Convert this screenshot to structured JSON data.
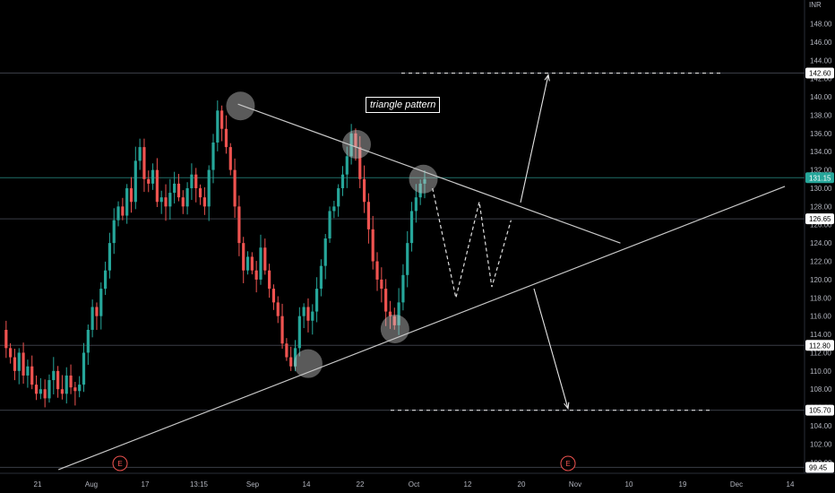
{
  "chart_data": {
    "type": "candlestick",
    "currency": "INR",
    "y_range": [
      98.8,
      150.6
    ],
    "y_ticks": [
      "100.00",
      "102.00",
      "104.00",
      "106.00",
      "108.00",
      "110.00",
      "112.00",
      "114.00",
      "116.00",
      "118.00",
      "120.00",
      "122.00",
      "124.00",
      "126.00",
      "128.00",
      "130.00",
      "132.00",
      "134.00",
      "136.00",
      "138.00",
      "140.00",
      "142.00",
      "144.00",
      "146.00",
      "148.00"
    ],
    "x_ticks": [
      "21",
      "Aug",
      "17",
      "13:15",
      "Sep",
      "14",
      "22",
      "Oct",
      "12",
      "20",
      "Nov",
      "10",
      "19",
      "Dec",
      "14"
    ],
    "price_tags": [
      {
        "label": "142.60",
        "value": 142.6,
        "color": "#ffffff",
        "text_color": "#000000"
      },
      {
        "label": "131.15",
        "value": 131.15,
        "color": "#26a69a",
        "text_color": "#ffffff"
      },
      {
        "label": "126.65",
        "value": 126.65,
        "color": "#ffffff",
        "text_color": "#000000"
      },
      {
        "label": "112.80",
        "value": 112.8,
        "color": "#ffffff",
        "text_color": "#000000"
      },
      {
        "label": "105.70",
        "value": 105.7,
        "color": "#ffffff",
        "text_color": "#000000"
      },
      {
        "label": "99.45",
        "value": 99.45,
        "color": "#ffffff",
        "text_color": "#000000"
      }
    ],
    "earnings_markers": [
      "E",
      "E"
    ],
    "annotation": "triangle pattern",
    "close_path": [
      114.5,
      112.5,
      111.5,
      110.0,
      112.0,
      109.5,
      110.5,
      108.5,
      107.5,
      108.0,
      107.0,
      109.0,
      110.0,
      108.0,
      107.5,
      109.5,
      108.2,
      107.8,
      108.5,
      112.0,
      114.5,
      117.0,
      116.0,
      119.0,
      121.0,
      124.0,
      126.5,
      128.0,
      127.0,
      130.0,
      128.5,
      133.0,
      134.5,
      131.0,
      130.5,
      132.0,
      128.5,
      129.0,
      128.0,
      129.5,
      130.5,
      129.0,
      128.0,
      130.0,
      131.5,
      130.0,
      129.0,
      128.0,
      132.0,
      135.0,
      138.5,
      136.5,
      134.5,
      132.0,
      128.0,
      124.0,
      121.0,
      122.5,
      121.0,
      120.0,
      123.5,
      121.0,
      119.0,
      117.5,
      116.0,
      113.0,
      111.5,
      110.5,
      112.5,
      116.0,
      117.0,
      115.5,
      116.5,
      119.0,
      121.5,
      124.5,
      127.5,
      128.0,
      130.0,
      131.5,
      133.5,
      136.0,
      134.5,
      131.0,
      128.5,
      125.5,
      122.0,
      120.0,
      119.0,
      116.5,
      116.0,
      115.0,
      117.5,
      120.5,
      124.0,
      127.5,
      129.0,
      130.5,
      131.0
    ],
    "time_range_label": "",
    "trendlines": [
      {
        "role": "upper-resistance",
        "from": [
          0.285,
          139.2
        ],
        "to": [
          0.743,
          124.0
        ]
      },
      {
        "role": "lower-support",
        "from": [
          0.07,
          99.2
        ],
        "to": [
          0.94,
          130.2
        ]
      }
    ],
    "targets": {
      "upside": 142.6,
      "downside": 105.7
    }
  }
}
